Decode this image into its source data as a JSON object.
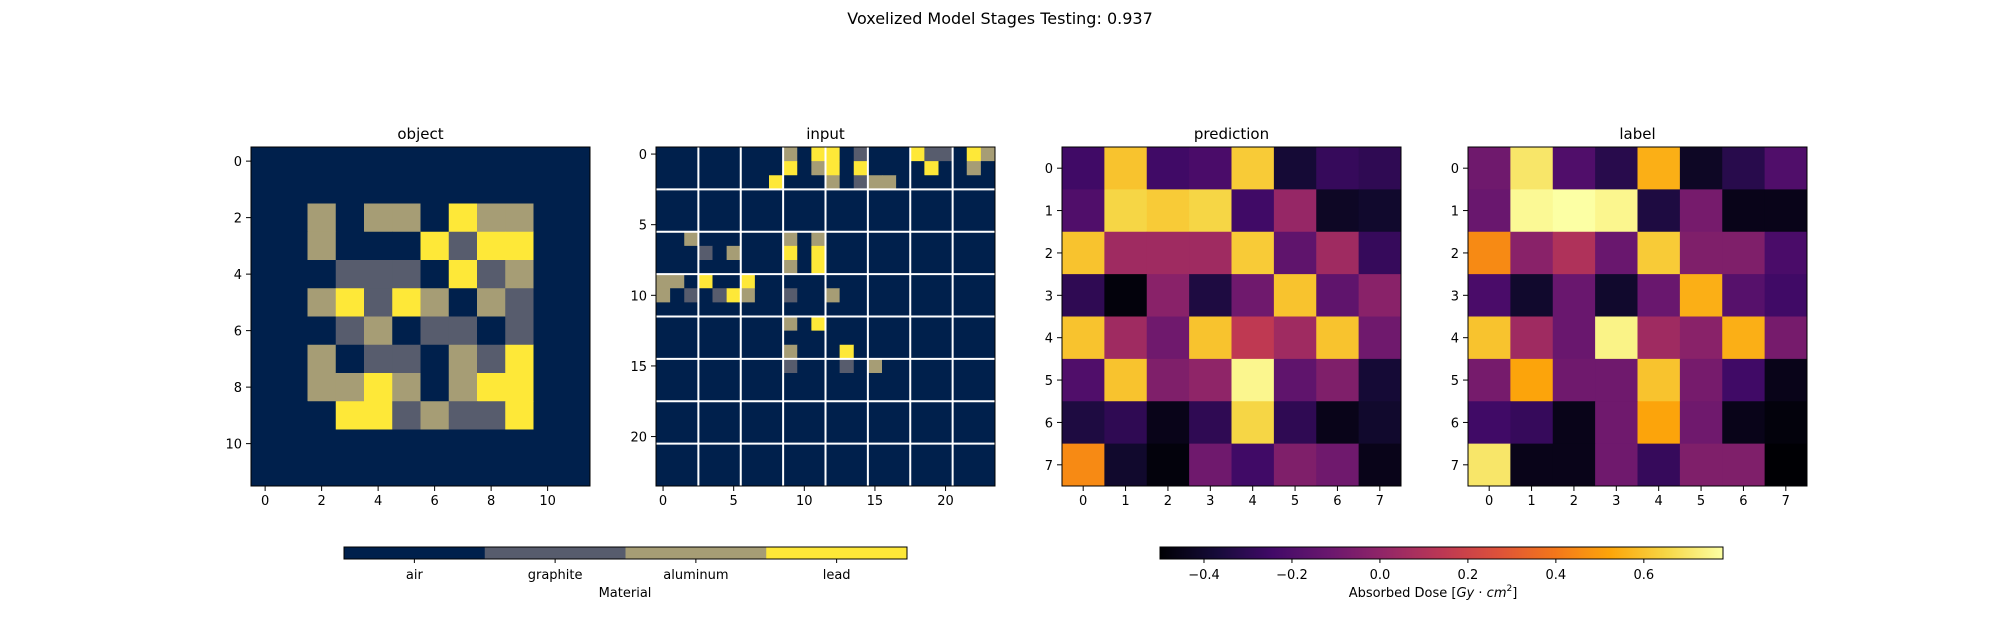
{
  "suptitle": "Voxelized Model Stages Testing: 0.937",
  "colors": {
    "air": "#00204c",
    "graphite": "#575c6d",
    "aluminum": "#a69d75",
    "lead": "#fee838"
  },
  "material_colorbar": {
    "label": "Material",
    "tick_labels": [
      "air",
      "graphite",
      "aluminum",
      "lead"
    ]
  },
  "dose_colorbar": {
    "label": "Absorbed Dose [Gy · cm²]",
    "label_main": "Absorbed Dose [",
    "label_gy": "Gy",
    "label_dot": " · ",
    "label_cm": "cm",
    "label_exp": "2",
    "label_end": "]",
    "ticks": [
      -0.4,
      -0.2,
      0.0,
      0.2,
      0.4,
      0.6
    ],
    "tick_labels": [
      "−0.4",
      "−0.2",
      "0.0",
      "0.2",
      "0.4",
      "0.6"
    ],
    "range": [
      -0.5,
      0.78
    ],
    "colormap": "inferno"
  },
  "chart_data": [
    {
      "type": "heatmap",
      "title": "object",
      "colormap": "material",
      "xticks": [
        0,
        2,
        4,
        6,
        8,
        10
      ],
      "yticks": [
        0,
        2,
        4,
        6,
        8,
        10
      ],
      "values": [
        [
          0,
          0,
          0,
          0,
          0,
          0,
          0,
          0,
          0,
          0,
          0,
          0
        ],
        [
          0,
          0,
          0,
          0,
          0,
          0,
          0,
          0,
          0,
          0,
          0,
          0
        ],
        [
          0,
          0,
          2,
          0,
          2,
          2,
          0,
          3,
          2,
          2,
          0,
          0
        ],
        [
          0,
          0,
          2,
          0,
          0,
          0,
          3,
          1,
          3,
          3,
          0,
          0
        ],
        [
          0,
          0,
          0,
          1,
          1,
          1,
          0,
          3,
          1,
          2,
          0,
          0
        ],
        [
          0,
          0,
          2,
          3,
          1,
          3,
          2,
          0,
          2,
          1,
          0,
          0
        ],
        [
          0,
          0,
          0,
          1,
          2,
          0,
          1,
          1,
          0,
          1,
          0,
          0
        ],
        [
          0,
          0,
          2,
          0,
          1,
          1,
          0,
          2,
          1,
          3,
          0,
          0
        ],
        [
          0,
          0,
          2,
          2,
          3,
          2,
          0,
          2,
          3,
          3,
          0,
          0
        ],
        [
          0,
          0,
          0,
          3,
          3,
          1,
          2,
          1,
          1,
          3,
          0,
          0
        ],
        [
          0,
          0,
          0,
          0,
          0,
          0,
          0,
          0,
          0,
          0,
          0,
          0
        ],
        [
          0,
          0,
          0,
          0,
          0,
          0,
          0,
          0,
          0,
          0,
          0,
          0
        ]
      ]
    },
    {
      "type": "heatmap",
      "title": "input",
      "colormap": "material",
      "xticks": [
        0,
        5,
        10,
        15,
        20
      ],
      "yticks": [
        0,
        5,
        10,
        15,
        20
      ],
      "values": [
        [
          0,
          0,
          0,
          0,
          0,
          0,
          0,
          0,
          0,
          2,
          0,
          3,
          3,
          0,
          1,
          0,
          0,
          0,
          3,
          1,
          1,
          0,
          3,
          2
        ],
        [
          0,
          0,
          0,
          0,
          0,
          0,
          0,
          0,
          0,
          3,
          0,
          2,
          3,
          0,
          3,
          0,
          0,
          0,
          0,
          3,
          0,
          0,
          2,
          0
        ],
        [
          0,
          0,
          0,
          0,
          0,
          0,
          0,
          0,
          3,
          0,
          0,
          0,
          2,
          0,
          1,
          2,
          2,
          0,
          0,
          0,
          0,
          0,
          0,
          0
        ],
        [
          0,
          0,
          0,
          0,
          0,
          0,
          0,
          0,
          0,
          0,
          0,
          0,
          0,
          0,
          0,
          0,
          0,
          0,
          0,
          0,
          0,
          0,
          0,
          0
        ],
        [
          0,
          0,
          0,
          0,
          0,
          0,
          0,
          0,
          0,
          0,
          0,
          0,
          0,
          0,
          0,
          0,
          0,
          0,
          0,
          0,
          0,
          0,
          0,
          0
        ],
        [
          0,
          0,
          0,
          0,
          0,
          0,
          0,
          0,
          0,
          0,
          0,
          0,
          0,
          0,
          0,
          0,
          0,
          0,
          0,
          0,
          0,
          0,
          0,
          0
        ],
        [
          0,
          0,
          2,
          0,
          0,
          0,
          0,
          0,
          0,
          2,
          0,
          2,
          0,
          0,
          0,
          0,
          0,
          0,
          0,
          0,
          0,
          0,
          0,
          0
        ],
        [
          0,
          0,
          0,
          1,
          0,
          2,
          0,
          0,
          0,
          3,
          0,
          3,
          0,
          0,
          0,
          0,
          0,
          0,
          0,
          0,
          0,
          0,
          0,
          0
        ],
        [
          0,
          0,
          0,
          0,
          0,
          0,
          0,
          0,
          0,
          2,
          0,
          3,
          0,
          0,
          0,
          0,
          0,
          0,
          0,
          0,
          0,
          0,
          0,
          0
        ],
        [
          2,
          2,
          0,
          3,
          0,
          0,
          3,
          0,
          0,
          0,
          0,
          0,
          0,
          0,
          0,
          0,
          0,
          0,
          0,
          0,
          0,
          0,
          0,
          0
        ],
        [
          2,
          0,
          1,
          0,
          1,
          3,
          2,
          0,
          0,
          1,
          0,
          0,
          2,
          0,
          0,
          0,
          0,
          0,
          0,
          0,
          0,
          0,
          0,
          0
        ],
        [
          0,
          0,
          0,
          0,
          0,
          0,
          0,
          0,
          0,
          0,
          0,
          0,
          0,
          0,
          0,
          0,
          0,
          0,
          0,
          0,
          0,
          0,
          0,
          0
        ],
        [
          0,
          0,
          0,
          0,
          0,
          0,
          0,
          0,
          0,
          2,
          0,
          3,
          0,
          0,
          0,
          0,
          0,
          0,
          0,
          0,
          0,
          0,
          0,
          0
        ],
        [
          0,
          0,
          0,
          0,
          0,
          0,
          0,
          0,
          0,
          0,
          0,
          0,
          0,
          0,
          0,
          0,
          0,
          0,
          0,
          0,
          0,
          0,
          0,
          0
        ],
        [
          0,
          0,
          0,
          0,
          0,
          0,
          0,
          0,
          0,
          2,
          0,
          0,
          0,
          3,
          0,
          0,
          0,
          0,
          0,
          0,
          0,
          0,
          0,
          0
        ],
        [
          0,
          0,
          0,
          0,
          0,
          0,
          0,
          0,
          0,
          1,
          0,
          0,
          0,
          1,
          0,
          2,
          0,
          0,
          0,
          0,
          0,
          0,
          0,
          0
        ],
        [
          0,
          0,
          0,
          0,
          0,
          0,
          0,
          0,
          0,
          0,
          0,
          0,
          0,
          0,
          0,
          0,
          0,
          0,
          0,
          0,
          0,
          0,
          0,
          0
        ],
        [
          0,
          0,
          0,
          0,
          0,
          0,
          0,
          0,
          0,
          0,
          0,
          0,
          0,
          0,
          0,
          0,
          0,
          0,
          0,
          0,
          0,
          0,
          0,
          0
        ],
        [
          0,
          0,
          0,
          0,
          0,
          0,
          0,
          0,
          0,
          0,
          0,
          0,
          0,
          0,
          0,
          0,
          0,
          0,
          0,
          0,
          0,
          0,
          0,
          0
        ],
        [
          0,
          0,
          0,
          0,
          0,
          0,
          0,
          0,
          0,
          0,
          0,
          0,
          0,
          0,
          0,
          0,
          0,
          0,
          0,
          0,
          0,
          0,
          0,
          0
        ],
        [
          0,
          0,
          0,
          0,
          0,
          0,
          0,
          0,
          0,
          0,
          0,
          0,
          0,
          0,
          0,
          0,
          0,
          0,
          0,
          0,
          0,
          0,
          0,
          0
        ],
        [
          0,
          0,
          0,
          0,
          0,
          0,
          0,
          0,
          0,
          0,
          0,
          0,
          0,
          0,
          0,
          0,
          0,
          0,
          0,
          0,
          0,
          0,
          0,
          0
        ],
        [
          0,
          0,
          0,
          0,
          0,
          0,
          0,
          0,
          0,
          0,
          0,
          0,
          0,
          0,
          0,
          0,
          0,
          0,
          0,
          0,
          0,
          0,
          0,
          0
        ],
        [
          0,
          0,
          0,
          0,
          0,
          0,
          0,
          0,
          0,
          0,
          0,
          0,
          0,
          0,
          0,
          0,
          0,
          0,
          0,
          0,
          0,
          0,
          0,
          0
        ]
      ]
    },
    {
      "type": "heatmap",
      "title": "prediction",
      "colormap": "inferno",
      "xticks": [
        0,
        1,
        2,
        3,
        4,
        5,
        6,
        7
      ],
      "yticks": [
        0,
        1,
        2,
        3,
        4,
        5,
        6,
        7
      ],
      "values": [
        [
          -0.25,
          0.6,
          -0.25,
          -0.22,
          0.62,
          -0.38,
          -0.28,
          -0.3
        ],
        [
          -0.2,
          0.65,
          0.62,
          0.65,
          -0.25,
          0.02,
          -0.42,
          -0.4
        ],
        [
          0.6,
          0.05,
          0.05,
          0.05,
          0.62,
          -0.15,
          0.05,
          -0.28
        ],
        [
          -0.3,
          -0.48,
          -0.02,
          -0.35,
          -0.1,
          0.6,
          -0.15,
          -0.02
        ],
        [
          0.6,
          0.05,
          -0.1,
          0.6,
          0.15,
          0.05,
          0.6,
          -0.1
        ],
        [
          -0.2,
          0.6,
          -0.05,
          0.0,
          0.75,
          -0.15,
          -0.05,
          -0.38
        ],
        [
          -0.35,
          -0.3,
          -0.45,
          -0.3,
          0.65,
          -0.3,
          -0.45,
          -0.4
        ],
        [
          0.45,
          -0.4,
          -0.48,
          -0.1,
          -0.25,
          -0.05,
          -0.1,
          -0.45
        ]
      ]
    },
    {
      "type": "heatmap",
      "title": "label",
      "colormap": "inferno",
      "xticks": [
        0,
        1,
        2,
        3,
        4,
        5,
        6,
        7
      ],
      "yticks": [
        0,
        1,
        2,
        3,
        4,
        5,
        6,
        7
      ],
      "values": [
        [
          -0.1,
          0.7,
          -0.2,
          -0.32,
          0.55,
          -0.42,
          -0.32,
          -0.2
        ],
        [
          -0.12,
          0.76,
          0.78,
          0.75,
          -0.35,
          -0.08,
          -0.45,
          -0.45
        ],
        [
          0.45,
          -0.02,
          0.1,
          -0.12,
          0.62,
          -0.05,
          -0.05,
          -0.22
        ],
        [
          -0.22,
          -0.4,
          -0.12,
          -0.4,
          -0.12,
          0.55,
          -0.18,
          -0.25
        ],
        [
          0.6,
          0.05,
          -0.12,
          0.74,
          0.05,
          -0.02,
          0.55,
          -0.08
        ],
        [
          -0.08,
          0.52,
          -0.1,
          -0.1,
          0.6,
          -0.08,
          -0.25,
          -0.45
        ],
        [
          -0.25,
          -0.28,
          -0.45,
          -0.1,
          0.52,
          -0.1,
          -0.45,
          -0.48
        ],
        [
          0.7,
          -0.45,
          -0.45,
          -0.1,
          -0.28,
          -0.05,
          -0.05,
          -0.5
        ]
      ]
    }
  ]
}
